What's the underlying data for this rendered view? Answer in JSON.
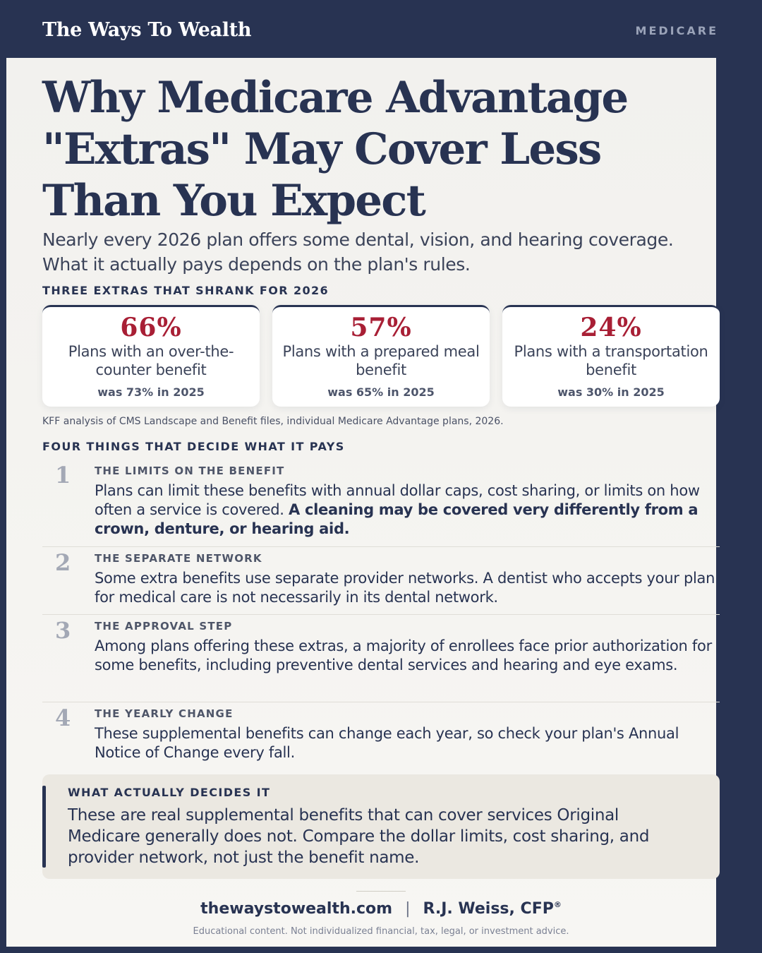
{
  "header": {
    "brand": "The Ways To Wealth",
    "category": "MEDICARE"
  },
  "title": "Why Medicare Advantage \"Extras\" May Cover Less Than You Expect",
  "subtitle": "Nearly every 2026 plan offers some dental, vision, and hearing coverage. What it actually pays depends on the plan's rules.",
  "stats_section": {
    "label": "THREE EXTRAS THAT SHRANK FOR 2026",
    "cards": [
      {
        "value": "66%",
        "label": "Plans with an over-the-counter benefit",
        "prior": "was 73% in 2025"
      },
      {
        "value": "57%",
        "label": "Plans with a prepared meal benefit",
        "prior": "was 65% in 2025"
      },
      {
        "value": "24%",
        "label": "Plans with a transportation benefit",
        "prior": "was 30% in 2025"
      }
    ],
    "source": "KFF analysis of CMS Landscape and Benefit files, individual Medicare Advantage plans, 2026."
  },
  "steps_section": {
    "label": "FOUR THINGS THAT DECIDE WHAT IT PAYS",
    "items": [
      {
        "number": "1",
        "title": "THE LIMITS ON THE BENEFIT",
        "body": "Plans can limit these benefits with annual dollar caps, cost sharing, or limits on how often a service is covered.",
        "emphasis": "A cleaning may be covered very differently from a crown, denture, or hearing aid."
      },
      {
        "number": "2",
        "title": "THE SEPARATE NETWORK",
        "body": "Some extra benefits use separate provider networks. A dentist who accepts your plan for medical care is not necessarily in its dental network."
      },
      {
        "number": "3",
        "title": "THE APPROVAL STEP",
        "body": "Among plans offering these extras, a majority of enrollees face prior authorization for some benefits, including preventive dental services and hearing and eye exams."
      },
      {
        "number": "4",
        "title": "THE YEARLY CHANGE",
        "body": "These supplemental benefits can change each year, so check your plan's Annual Notice of Change every fall."
      }
    ]
  },
  "callout": {
    "title": "WHAT ACTUALLY DECIDES IT",
    "body": "These are real supplemental benefits that can cover services Original Medicare generally does not. Compare the dollar limits, cost sharing, and provider network, not just the benefit name."
  },
  "footer": {
    "website": "thewaystowealth.com",
    "separator": "|",
    "author": "R.J. Weiss, CFP",
    "author_mark": "®",
    "disclaimer": "Educational content. Not individualized financial, tax, legal, or investment advice."
  }
}
